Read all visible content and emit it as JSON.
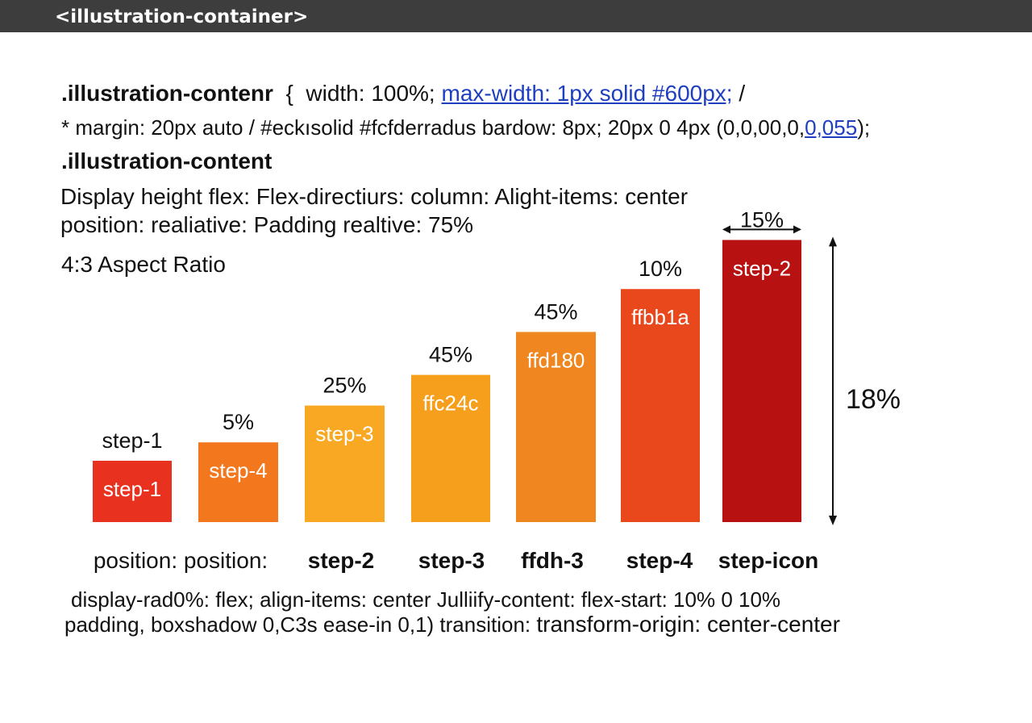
{
  "header": {
    "title": "<illustration-container>"
  },
  "code": {
    "line1": {
      "selector": ".illustration-contenr",
      "brace": "{",
      "prop": "width: 100%;",
      "link": "max-width: 1px solid #600px;",
      "tail": "/"
    },
    "line2": {
      "text": "* margin: 20px auto / #eckısolid #fcfderradus bardow: 8px; 20px 0 4px (0,0,00,0,",
      "link": "0,055",
      "tail": ");"
    },
    "line3": ".illustration-content",
    "line4": "Display height flex: Flex-directiurs: column: Alight-items: center",
    "line5": "position: realiative: Padding realtive: 75%",
    "line6": "4:3 Aspect Ratio"
  },
  "footer": {
    "line1": "display-rad0%: flex; align-items: center Julliify-content: flex-start: 10% 0 10%",
    "line2a": "padding, boxshadow 0,C3s ease-in 0,1) transition: ",
    "line2b": "transform-origin: center-center"
  },
  "chart_data": {
    "type": "bar",
    "categories": [
      "position: position:",
      "step-2",
      "step-3",
      "ffdh-3",
      "step-4",
      "step-icon",
      ""
    ],
    "values": [
      10,
      13,
      19,
      24,
      31,
      38,
      46
    ],
    "ylim": [
      0,
      50
    ],
    "top_labels": [
      "step-1",
      "5%",
      "25%",
      "45%",
      "45%",
      "10%",
      "15%"
    ],
    "inner_labels": [
      "step-1",
      "step-4",
      "step-3",
      "ffc24c",
      "ffd180",
      "ffbb1a",
      "step-2"
    ],
    "colors": [
      "#e8321f",
      "#f3771d",
      "#f9a823",
      "#f59f1c",
      "#f0861f",
      "#e9481c",
      "#b81111"
    ],
    "annotation": "18%",
    "grid": false,
    "legend": "none"
  }
}
